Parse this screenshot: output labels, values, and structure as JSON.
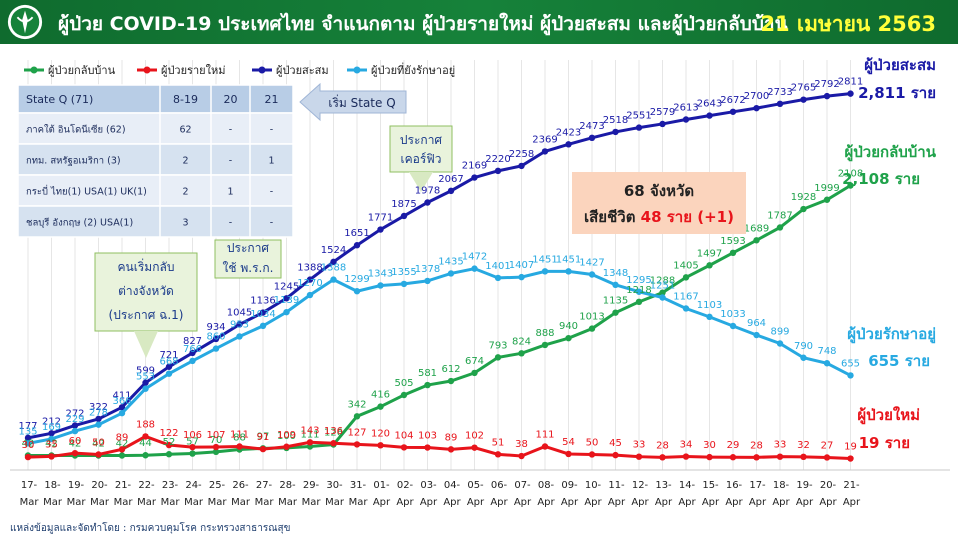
{
  "header": {
    "title": "ผู้ป่วย COVID-19 ประเทศไทย จำแนกตาม ผู้ป่วยรายใหม่ ผู้ป่วยสะสม  และผู้ป่วยกลับบ้าน",
    "date": "21 เมษายน 2563"
  },
  "footer": {
    "source": "แหล่งข้อมูลและจัดทำโดย : กรมควบคุมโรค กระทรวงสาธารณสุข"
  },
  "state_q_table": {
    "header": [
      "State Q    (71)",
      "8-19",
      "20",
      "21"
    ],
    "rows": [
      [
        "ภาคใต้ อินโดนีเซีย  (62)",
        "62",
        "-",
        "-"
      ],
      [
        "กทม. สหรัฐอเมริกา (3)",
        "2",
        "-",
        "1"
      ],
      [
        "กระบี่ ไทย(1) USA(1) UK(1)",
        "2",
        "1",
        "-"
      ],
      [
        "ชลบุรี อังกฤษ (2) USA(1)",
        "3",
        "-",
        "-"
      ]
    ],
    "callout": "เริ่ม State Q"
  },
  "summary_box": {
    "line1": "68 จังหวัด",
    "line2_prefix": "เสียชีวิต",
    "line2_value": "48 ราย (+1)"
  },
  "colors": {
    "recovered": "#1fa24a",
    "new": "#e8141b",
    "cumulative": "#1a1aa6",
    "active": "#27a9e1",
    "banner": "#16823a",
    "date": "#ffff3a"
  },
  "chart_data": {
    "type": "line",
    "x": [
      "17-Mar",
      "18-Mar",
      "19-Mar",
      "20-Mar",
      "21-Mar",
      "22-Mar",
      "23-Mar",
      "24-Mar",
      "25-Mar",
      "26-Mar",
      "27-Mar",
      "28-Mar",
      "29-Mar",
      "30-Mar",
      "31-Mar",
      "01-Apr",
      "02-Apr",
      "03-Apr",
      "04-Apr",
      "05-Apr",
      "06-Apr",
      "07-Apr",
      "08-Apr",
      "09-Apr",
      "10-Apr",
      "11-Apr",
      "12-Apr",
      "13-Apr",
      "14-Apr",
      "15-Apr",
      "16-Apr",
      "17-Apr",
      "18-Apr",
      "19-Apr",
      "20-Apr",
      "21-Apr"
    ],
    "x_tick_labels": [
      [
        "17-",
        "Mar"
      ],
      [
        "18-",
        "Mar"
      ],
      [
        "19-",
        "Mar"
      ],
      [
        "20-",
        "Mar"
      ],
      [
        "21-",
        "Mar"
      ],
      [
        "22-",
        "Mar"
      ],
      [
        "23-",
        "Mar"
      ],
      [
        "24-",
        "Mar"
      ],
      [
        "25-",
        "Mar"
      ],
      [
        "26-",
        "Mar"
      ],
      [
        "27-",
        "Mar"
      ],
      [
        "28-",
        "Mar"
      ],
      [
        "29-",
        "Mar"
      ],
      [
        "30-",
        "Mar"
      ],
      [
        "31-",
        "Mar"
      ],
      [
        "01-",
        "Apr"
      ],
      [
        "02-",
        "Apr"
      ],
      [
        "03-",
        "Apr"
      ],
      [
        "04-",
        "Apr"
      ],
      [
        "05-",
        "Apr"
      ],
      [
        "06-",
        "Apr"
      ],
      [
        "07-",
        "Apr"
      ],
      [
        "08-",
        "Apr"
      ],
      [
        "09-",
        "Apr"
      ],
      [
        "10-",
        "Apr"
      ],
      [
        "11-",
        "Apr"
      ],
      [
        "12-",
        "Apr"
      ],
      [
        "13-",
        "Apr"
      ],
      [
        "14-",
        "Apr"
      ],
      [
        "15-",
        "Apr"
      ],
      [
        "16-",
        "Apr"
      ],
      [
        "17-",
        "Apr"
      ],
      [
        "18-",
        "Apr"
      ],
      [
        "19-",
        "Apr"
      ],
      [
        "20-",
        "Apr"
      ],
      [
        "21-",
        "Apr"
      ]
    ],
    "ylim": [
      0,
      2900
    ],
    "series": [
      {
        "name": "ผู้ป่วยกลับบ้าน",
        "key": "recovered",
        "values": [
          42,
          42,
          42,
          42,
          42,
          44,
          52,
          57,
          70,
          88,
          97,
          100,
          111,
          126,
          342,
          416,
          505,
          581,
          612,
          674,
          793,
          824,
          888,
          940,
          1013,
          1135,
          1218,
          1288,
          1405,
          1497,
          1593,
          1689,
          1787,
          1928,
          1999,
          2108
        ],
        "end_label": "ผู้ป่วยกลับบ้าน",
        "end_value": "2,108 ราย"
      },
      {
        "name": "ผู้ป่วยรายใหม่",
        "key": "new",
        "values": [
          30,
          35,
          60,
          50,
          89,
          188,
          122,
          106,
          107,
          111,
          91,
          109,
          143,
          136,
          127,
          120,
          104,
          103,
          89,
          102,
          51,
          38,
          111,
          54,
          50,
          45,
          33,
          28,
          34,
          30,
          29,
          28,
          33,
          32,
          27,
          19
        ],
        "end_label": "ผู้ป่วยใหม่",
        "end_value": "19 ราย"
      },
      {
        "name": "ผู้ป่วยสะสม",
        "key": "cumulative",
        "values": [
          177,
          212,
          272,
          322,
          411,
          599,
          721,
          827,
          934,
          1045,
          1136,
          1245,
          1388,
          1524,
          1651,
          1771,
          1875,
          1978,
          2067,
          2169,
          2220,
          2258,
          2369,
          2423,
          2473,
          2518,
          2551,
          2579,
          2613,
          2643,
          2672,
          2700,
          2733,
          2765,
          2792,
          2811
        ],
        "end_label": "ผู้ป่วยสะสม",
        "end_value": "2,811 ราย"
      },
      {
        "name": "ผู้ป่วยที่ยังรักษาอยู่",
        "key": "active",
        "values": [
          135,
          169,
          229,
          278,
          366,
          553,
          668,
          766,
          860,
          953,
          1034,
          1139,
          1270,
          1388,
          1299,
          1343,
          1355,
          1378,
          1435,
          1472,
          1401,
          1407,
          1451,
          1451,
          1427,
          1348,
          1295,
          1251,
          1167,
          1103,
          1033,
          964,
          899,
          790,
          748,
          655
        ],
        "end_label": "ผู้ป่วยรักษาอยู่",
        "end_value": "655 ราย"
      }
    ],
    "annotations": [
      {
        "key": "ann1",
        "lines": [
          "คนเริ่มกลับ",
          "ต่างจังหวัด",
          "(ประกาศ ฉ.1)"
        ],
        "x_index": 5
      },
      {
        "key": "ann2",
        "lines": [
          "ประกาศ",
          "ใช้ พ.ร.ก."
        ],
        "x_index": 9
      },
      {
        "key": "ann3",
        "lines": [
          "ประกาศ",
          "เคอร์ฟิว"
        ],
        "x_index": 16
      }
    ]
  }
}
